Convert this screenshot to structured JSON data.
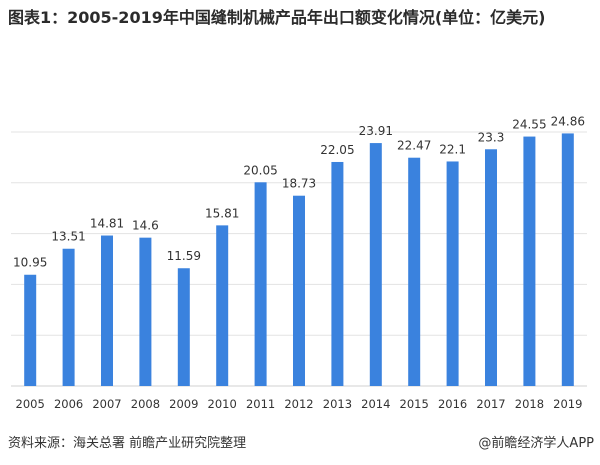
{
  "title": "图表1：2005-2019年中国缝制机械产品年出口额变化情况(单位：亿美元)",
  "source": "资料来源：海关总署 前瞻产业研究院整理",
  "credit": "@前瞻经济学人APP",
  "colors": {
    "bar": "#3a82de",
    "grid": "#e3e3e3",
    "text": "#333333"
  },
  "chart_data": {
    "type": "bar",
    "categories": [
      "2005",
      "2006",
      "2007",
      "2008",
      "2009",
      "2010",
      "2011",
      "2012",
      "2013",
      "2014",
      "2015",
      "2016",
      "2017",
      "2018",
      "2019"
    ],
    "values": [
      10.95,
      13.51,
      14.81,
      14.6,
      11.59,
      15.81,
      20.05,
      18.73,
      22.05,
      23.91,
      22.47,
      22.1,
      23.3,
      24.55,
      24.86
    ],
    "data_labels": [
      "10.95",
      "13.51",
      "14.81",
      "14.6",
      "11.59",
      "15.81",
      "20.05",
      "18.73",
      "22.05",
      "23.91",
      "22.47",
      "22.1",
      "23.3",
      "24.55",
      "24.86"
    ],
    "ylim": [
      0,
      25
    ],
    "gridlines": [
      0,
      5,
      10,
      15,
      20,
      25
    ],
    "grid": true,
    "y_tick_labels_shown": false,
    "legend": "none"
  }
}
